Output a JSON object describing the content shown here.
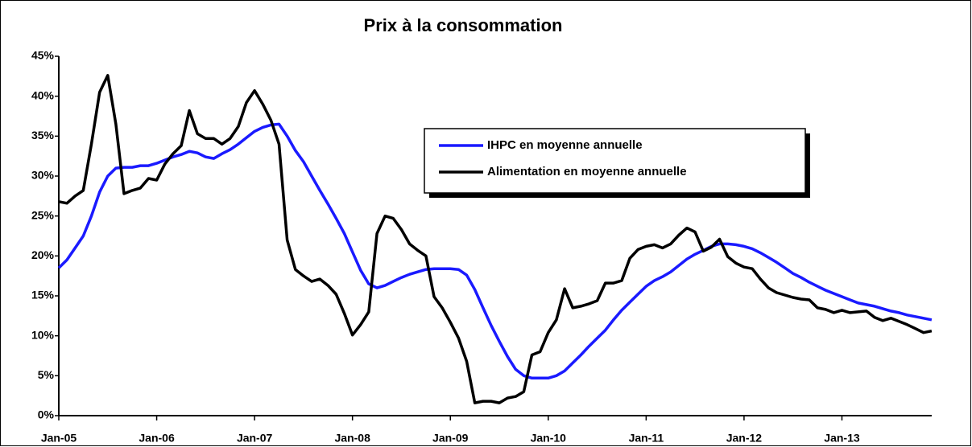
{
  "chart_data": {
    "type": "line",
    "title": "Prix à la consommation",
    "categories": [
      "Jan-05",
      null,
      null,
      null,
      null,
      null,
      null,
      null,
      null,
      null,
      null,
      null,
      "Jan-06",
      null,
      null,
      null,
      null,
      null,
      null,
      null,
      null,
      null,
      null,
      null,
      "Jan-07",
      null,
      null,
      null,
      null,
      null,
      null,
      null,
      null,
      null,
      null,
      null,
      "Jan-08",
      null,
      null,
      null,
      null,
      null,
      null,
      null,
      null,
      null,
      null,
      null,
      "Jan-09",
      null,
      null,
      null,
      null,
      null,
      null,
      null,
      null,
      null,
      null,
      null,
      "Jan-10",
      null,
      null,
      null,
      null,
      null,
      null,
      null,
      null,
      null,
      null,
      null,
      "Jan-11",
      null,
      null,
      null,
      null,
      null,
      null,
      null,
      null,
      null,
      null,
      null,
      "Jan-12",
      null,
      null,
      null,
      null,
      null,
      null,
      null,
      null,
      null,
      null,
      null,
      "Jan-13",
      null,
      null,
      null,
      null,
      null,
      null,
      null,
      null,
      null,
      null,
      null
    ],
    "series": [
      {
        "name": "IHPC en moyenne annuelle",
        "color": "#1a1aff",
        "values": [
          18.5,
          19.5,
          21,
          22.5,
          25,
          28,
          30,
          31,
          31.1,
          31.1,
          31.3,
          31.3,
          31.6,
          32,
          32.4,
          32.7,
          33.1,
          32.9,
          32.4,
          32.2,
          32.8,
          33.3,
          34,
          34.8,
          35.6,
          36.1,
          36.4,
          36.5,
          35,
          33.2,
          31.8,
          30,
          28.2,
          26.5,
          24.7,
          22.8,
          20.5,
          18.2,
          16.5,
          16,
          16.3,
          16.8,
          17.3,
          17.7,
          18,
          18.3,
          18.4,
          18.4,
          18.4,
          18.3,
          17.6,
          15.8,
          13.5,
          11.3,
          9.3,
          7.4,
          5.8,
          5,
          4.7,
          4.7,
          4.7,
          5,
          5.6,
          6.6,
          7.6,
          8.7,
          9.7,
          10.7,
          12,
          13.2,
          14.2,
          15.2,
          16.2,
          16.9,
          17.4,
          18,
          18.8,
          19.6,
          20.2,
          20.7,
          21.2,
          21.5,
          21.5,
          21.4,
          21.2,
          20.9,
          20.4,
          19.8,
          19.2,
          18.5,
          17.8,
          17.3,
          16.7,
          16.2,
          15.7,
          15.3,
          14.9,
          14.5,
          14.1,
          13.9,
          13.7,
          13.4,
          13.1,
          12.9,
          12.6,
          12.4,
          12.2,
          12
        ]
      },
      {
        "name": "Alimentation en moyenne annuelle",
        "color": "#000000",
        "values": [
          26.8,
          26.6,
          27.5,
          28.2,
          34,
          40.5,
          42.6,
          36.5,
          27.8,
          28.2,
          28.5,
          29.7,
          29.5,
          31.5,
          32.8,
          33.8,
          38.2,
          35.3,
          34.7,
          34.7,
          34,
          34.7,
          36.2,
          39.2,
          40.7,
          39,
          37,
          34,
          22,
          18.3,
          17.5,
          16.8,
          17.1,
          16.3,
          15.2,
          12.8,
          10.1,
          11.4,
          13,
          22.8,
          25,
          24.7,
          23.3,
          21.5,
          20.7,
          20,
          14.9,
          13.5,
          11.7,
          9.7,
          6.8,
          1.6,
          1.8,
          1.8,
          1.6,
          2.2,
          2.4,
          3,
          7.6,
          8,
          10.4,
          12,
          15.9,
          13.5,
          13.7,
          14,
          14.4,
          16.6,
          16.6,
          16.9,
          19.7,
          20.8,
          21.2,
          21.4,
          21,
          21.5,
          22.6,
          23.5,
          23,
          20.6,
          21.1,
          22.1,
          19.9,
          19.1,
          18.6,
          18.4,
          17.1,
          16,
          15.4,
          15.1,
          14.8,
          14.6,
          14.5,
          13.5,
          13.3,
          12.9,
          13.2,
          12.9,
          13,
          13.1,
          12.3,
          11.9,
          12.2,
          11.8,
          11.4,
          10.9,
          10.4,
          10.6
        ]
      }
    ],
    "ylim": [
      0,
      45
    ],
    "yticks": [
      {
        "value": 0,
        "label": "0%"
      },
      {
        "value": 5,
        "label": "5%"
      },
      {
        "value": 10,
        "label": "10%"
      },
      {
        "value": 15,
        "label": "15%"
      },
      {
        "value": 20,
        "label": "20%"
      },
      {
        "value": 25,
        "label": "25%"
      },
      {
        "value": 30,
        "label": "30%"
      },
      {
        "value": 35,
        "label": "35%"
      },
      {
        "value": 40,
        "label": "40%"
      },
      {
        "value": 45,
        "label": "45%"
      }
    ],
    "grid": false,
    "legend": "right"
  }
}
